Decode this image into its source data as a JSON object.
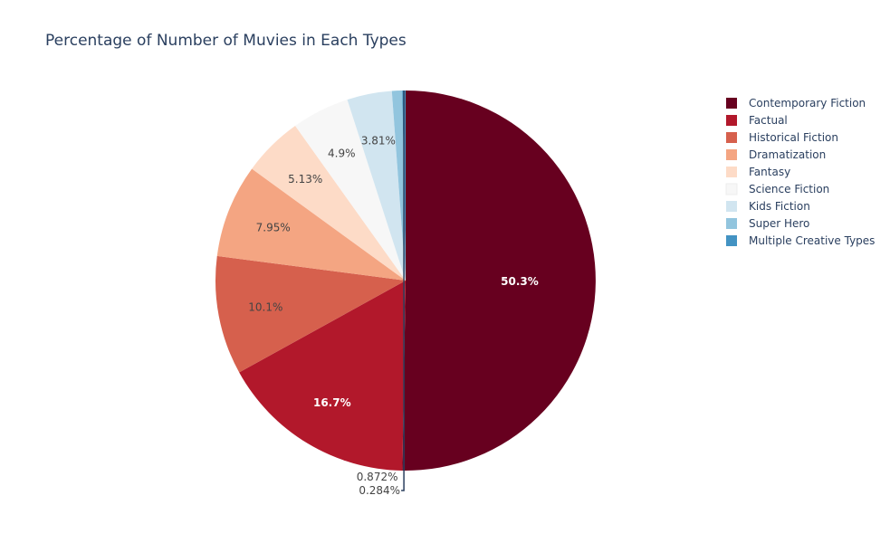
{
  "chart_data": {
    "type": "pie",
    "title": "Percentage of Number of Muvies in Each Types",
    "legend_position": "right",
    "slices": [
      {
        "label": "Contemporary Fiction",
        "value": 50.3,
        "text": "50.3%",
        "color": "#67001f",
        "text_color": "#ffffff"
      },
      {
        "label": "Factual",
        "value": 16.7,
        "text": "16.7%",
        "color": "#b2182b",
        "text_color": "#ffffff"
      },
      {
        "label": "Historical Fiction",
        "value": 10.1,
        "text": "10.1%",
        "color": "#d6604d",
        "text_color": "#444444"
      },
      {
        "label": "Dramatization",
        "value": 7.95,
        "text": "7.95%",
        "color": "#f4a582",
        "text_color": "#444444"
      },
      {
        "label": "Fantasy",
        "value": 5.13,
        "text": "5.13%",
        "color": "#fddbc7",
        "text_color": "#444444"
      },
      {
        "label": "Science Fiction",
        "value": 4.9,
        "text": "4.9%",
        "color": "#f7f7f7",
        "text_color": "#444444"
      },
      {
        "label": "Kids Fiction",
        "value": 3.81,
        "text": "3.81%",
        "color": "#d1e5f0",
        "text_color": "#444444"
      },
      {
        "label": "Super Hero",
        "value": 0.872,
        "text": "0.872%",
        "color": "#92c5de",
        "text_color": "#444444"
      },
      {
        "label": "Multiple Creative Types",
        "value": 0.284,
        "text": "0.284%",
        "color": "#4393c3",
        "text_color": "#444444"
      }
    ]
  }
}
